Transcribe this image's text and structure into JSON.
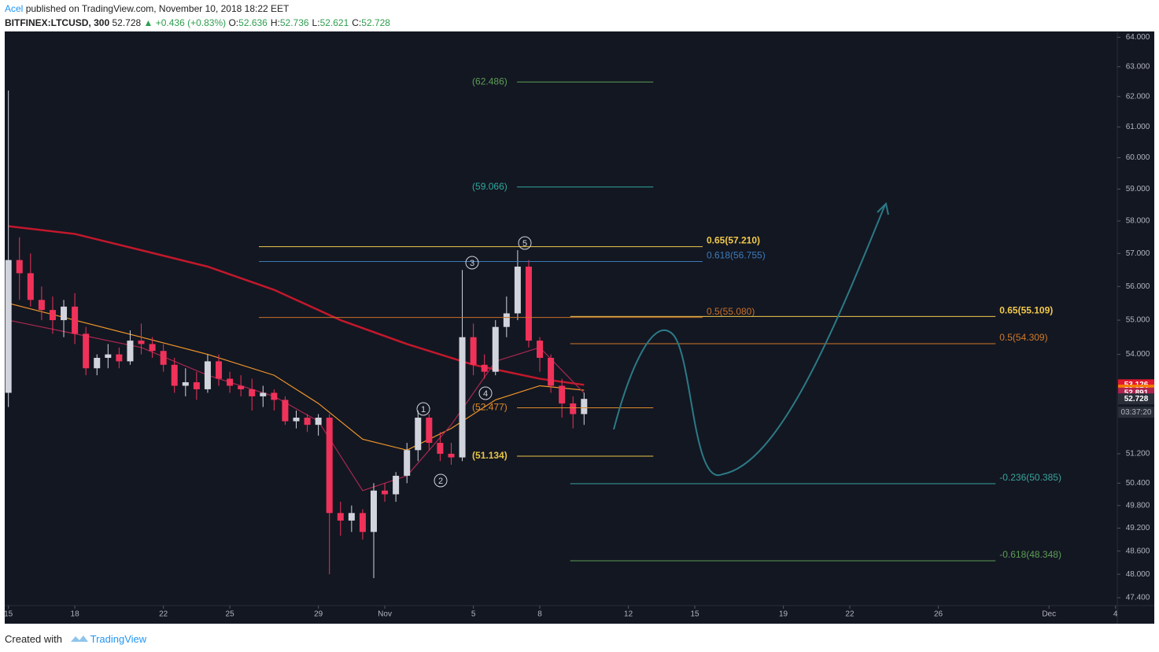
{
  "header": {
    "author": "Acel",
    "published": "published on TradingView.com, November 10, 2018 18:22 EET",
    "symbol": "BITFINEX:LTCUSD, 300",
    "last": "52.728",
    "change": "▲ +0.436 (+0.83%)",
    "ohlc": [
      {
        "label": "O:",
        "value": "52.636"
      },
      {
        "label": "H:",
        "value": "52.736"
      },
      {
        "label": "L:",
        "value": "52.621"
      },
      {
        "label": "C:",
        "value": "52.728"
      }
    ]
  },
  "footer": {
    "created": "Created with",
    "brand": "TradingView"
  },
  "chart_data": {
    "type": "candlestick",
    "log_scale": true,
    "xlim": [
      "2018-10-14T20:00",
      "2018-12-04T02:00"
    ],
    "ylim": [
      47.2,
      64.2
    ],
    "xticks": [
      {
        "value": "2018-10-15T00:00",
        "label": "15"
      },
      {
        "value": "2018-10-18T00:00",
        "label": "18"
      },
      {
        "value": "2018-10-22T00:00",
        "label": "22"
      },
      {
        "value": "2018-10-25T00:00",
        "label": "25"
      },
      {
        "value": "2018-10-29T00:00",
        "label": "29"
      },
      {
        "value": "2018-11-01T00:00",
        "label": "Nov"
      },
      {
        "value": "2018-11-05T00:00",
        "label": "5"
      },
      {
        "value": "2018-11-08T00:00",
        "label": "8"
      },
      {
        "value": "2018-11-12T00:00",
        "label": "12"
      },
      {
        "value": "2018-11-15T00:00",
        "label": "15"
      },
      {
        "value": "2018-11-19T00:00",
        "label": "19"
      },
      {
        "value": "2018-11-22T00:00",
        "label": "22"
      },
      {
        "value": "2018-11-26T00:00",
        "label": "26"
      },
      {
        "value": "2018-12-01T00:00",
        "label": "Dec"
      },
      {
        "value": "2018-12-04T00:00",
        "label": "4"
      }
    ],
    "yticks": [
      {
        "value": 64,
        "label": "64.000"
      },
      {
        "value": 63,
        "label": "63.000"
      },
      {
        "value": 62,
        "label": "62.000"
      },
      {
        "value": 61,
        "label": "61.000"
      },
      {
        "value": 60,
        "label": "60.000"
      },
      {
        "value": 59,
        "label": "59.000"
      },
      {
        "value": 58,
        "label": "58.000"
      },
      {
        "value": 57,
        "label": "57.000"
      },
      {
        "value": 56,
        "label": "56.000"
      },
      {
        "value": 55,
        "label": "55.000"
      },
      {
        "value": 54,
        "label": "54.000"
      },
      {
        "value": 51.2,
        "label": "51.200"
      },
      {
        "value": 50.4,
        "label": "50.400"
      },
      {
        "value": 49.8,
        "label": "49.800"
      },
      {
        "value": 49.2,
        "label": "49.200"
      },
      {
        "value": 48.6,
        "label": "48.600"
      },
      {
        "value": 48,
        "label": "48.000"
      },
      {
        "value": 47.4,
        "label": "47.400"
      }
    ],
    "up_color": "#d1d4dc",
    "down_color": "#f0325a",
    "x": [
      "2018-10-15T00:00",
      "2018-10-15T12:00",
      "2018-10-16T00:00",
      "2018-10-16T12:00",
      "2018-10-17T00:00",
      "2018-10-17T12:00",
      "2018-10-18T00:00",
      "2018-10-18T12:00",
      "2018-10-19T00:00",
      "2018-10-19T12:00",
      "2018-10-20T00:00",
      "2018-10-20T12:00",
      "2018-10-21T00:00",
      "2018-10-21T12:00",
      "2018-10-22T00:00",
      "2018-10-22T12:00",
      "2018-10-23T00:00",
      "2018-10-23T12:00",
      "2018-10-24T00:00",
      "2018-10-24T12:00",
      "2018-10-25T00:00",
      "2018-10-25T12:00",
      "2018-10-26T00:00",
      "2018-10-26T12:00",
      "2018-10-27T00:00",
      "2018-10-27T12:00",
      "2018-10-28T00:00",
      "2018-10-28T12:00",
      "2018-10-29T00:00",
      "2018-10-29T12:00",
      "2018-10-30T00:00",
      "2018-10-30T12:00",
      "2018-10-31T00:00",
      "2018-10-31T12:00",
      "2018-11-01T00:00",
      "2018-11-01T12:00",
      "2018-11-02T00:00",
      "2018-11-02T12:00",
      "2018-11-03T00:00",
      "2018-11-03T12:00",
      "2018-11-04T00:00",
      "2018-11-04T12:00",
      "2018-11-05T00:00",
      "2018-11-05T12:00",
      "2018-11-06T00:00",
      "2018-11-06T12:00",
      "2018-11-07T00:00",
      "2018-11-07T12:00",
      "2018-11-08T00:00",
      "2018-11-08T12:00",
      "2018-11-09T00:00",
      "2018-11-09T12:00",
      "2018-11-10T00:00"
    ],
    "open": [
      52.9,
      56.8,
      56.4,
      55.6,
      55.3,
      55.0,
      55.4,
      54.6,
      53.6,
      53.9,
      54.0,
      53.8,
      54.4,
      54.3,
      54.1,
      53.7,
      53.1,
      53.2,
      53.0,
      53.8,
      53.3,
      53.1,
      53.0,
      52.8,
      52.9,
      52.7,
      52.1,
      52.2,
      52.0,
      52.2,
      49.6,
      49.4,
      49.6,
      49.1,
      50.2,
      50.1,
      50.6,
      51.3,
      52.2,
      51.5,
      51.2,
      51.1,
      54.5,
      53.7,
      53.5,
      54.8,
      55.2,
      56.6,
      54.4,
      53.9,
      53.1,
      52.6,
      52.3
    ],
    "high": [
      62.2,
      57.5,
      57.0,
      56.0,
      55.7,
      55.6,
      55.8,
      54.8,
      54.0,
      54.3,
      54.2,
      54.7,
      54.9,
      54.5,
      54.3,
      53.9,
      53.6,
      53.5,
      54.0,
      54.0,
      53.5,
      53.4,
      53.3,
      53.1,
      53.0,
      52.8,
      52.4,
      52.3,
      52.3,
      52.3,
      49.9,
      49.8,
      49.7,
      50.4,
      50.4,
      50.7,
      51.5,
      52.4,
      52.3,
      51.8,
      51.5,
      56.5,
      54.9,
      54.0,
      55.0,
      55.7,
      57.1,
      56.8,
      54.5,
      54.0,
      53.3,
      52.8,
      52.9
    ],
    "low": [
      52.5,
      55.6,
      55.4,
      55.0,
      54.6,
      54.5,
      54.3,
      53.4,
      53.4,
      53.6,
      53.6,
      53.7,
      54.0,
      53.9,
      53.5,
      52.9,
      52.8,
      52.7,
      52.9,
      53.1,
      52.9,
      52.8,
      52.4,
      52.5,
      52.4,
      52.0,
      51.9,
      51.8,
      51.7,
      48.0,
      49.0,
      49.1,
      48.9,
      47.9,
      49.9,
      49.9,
      50.4,
      51.0,
      51.3,
      51.0,
      50.9,
      51.0,
      53.4,
      53.3,
      53.4,
      54.5,
      55.0,
      54.2,
      53.5,
      52.9,
      52.2,
      51.9,
      52.0
    ],
    "close": [
      56.8,
      56.4,
      55.6,
      55.3,
      55.0,
      55.4,
      54.6,
      53.6,
      53.9,
      54.0,
      53.8,
      54.4,
      54.3,
      54.1,
      53.7,
      53.1,
      53.2,
      53.0,
      53.8,
      53.3,
      53.1,
      53.0,
      52.8,
      52.9,
      52.7,
      52.1,
      52.2,
      52.0,
      52.2,
      49.6,
      49.4,
      49.6,
      49.1,
      50.2,
      50.1,
      50.6,
      51.3,
      52.2,
      51.5,
      51.2,
      51.1,
      54.5,
      53.7,
      53.5,
      54.8,
      55.2,
      56.6,
      54.4,
      53.9,
      53.1,
      52.6,
      52.3,
      52.728
    ],
    "overlays": [
      {
        "color": "#c2182b",
        "x": [
          "2018-10-15T00:00",
          "2018-10-18T00:00",
          "2018-10-21T00:00",
          "2018-10-24T00:00",
          "2018-10-27T00:00",
          "2018-10-30T00:00",
          "2018-11-02T00:00",
          "2018-11-05T00:00",
          "2018-11-08T00:00",
          "2018-11-10T00:00"
        ],
        "values": [
          57.84,
          57.6,
          57.1,
          56.6,
          55.9,
          55.0,
          54.3,
          53.7,
          53.3,
          53.126
        ]
      },
      {
        "color": "#f0962a",
        "x": [
          "2018-10-15T00:00",
          "2018-10-18T00:00",
          "2018-10-21T00:00",
          "2018-10-24T00:00",
          "2018-10-27T00:00",
          "2018-10-29T00:00",
          "2018-10-31T00:00",
          "2018-11-02T00:00",
          "2018-11-04T00:00",
          "2018-11-06T00:00",
          "2018-11-08T00:00",
          "2018-11-10T00:00"
        ],
        "values": [
          55.5,
          55.0,
          54.5,
          54.0,
          53.4,
          52.6,
          51.6,
          51.3,
          51.9,
          52.7,
          53.1,
          52.974
        ]
      },
      {
        "color": "#a8284f",
        "x": [
          "2018-10-15T00:00",
          "2018-10-18T00:00",
          "2018-10-21T00:00",
          "2018-10-24T00:00",
          "2018-10-27T00:00",
          "2018-10-29T00:00",
          "2018-10-31T00:00",
          "2018-11-02T00:00",
          "2018-11-04T00:00",
          "2018-11-06T00:00",
          "2018-11-08T00:00",
          "2018-11-10T00:00"
        ],
        "values": [
          55.0,
          54.6,
          54.2,
          53.4,
          52.8,
          52.1,
          50.2,
          50.6,
          52.0,
          53.8,
          54.2,
          52.891
        ]
      }
    ],
    "fib_groups": [
      {
        "start": "2018-10-26T07:30",
        "end": "2018-11-15T08:30",
        "label_pos": "right",
        "levels": [
          {
            "text": "0.65(57.210)",
            "price": 57.21,
            "color": "#f2c94c",
            "bold": true
          },
          {
            "text": "0.618(56.755)",
            "price": 56.755,
            "color": "#3d7ab8"
          },
          {
            "text": "0.5(55.080)",
            "price": 55.08,
            "color": "#c8702a"
          }
        ]
      },
      {
        "start": "2018-11-04T22:40",
        "end": "2018-11-13T03:00",
        "label_pos": "left",
        "levels": [
          {
            "text": "(62.486)",
            "price": 62.486,
            "color": "#5d9e55"
          },
          {
            "text": "(59.066)",
            "price": 59.066,
            "color": "#2fa99c"
          },
          {
            "text": "(52.477)",
            "price": 52.477,
            "color": "#e08a2a"
          },
          {
            "text": "(51.134)",
            "price": 51.134,
            "color": "#e8c547",
            "bold": true
          }
        ]
      },
      {
        "start": "2018-11-09T09:00",
        "end": "2018-11-28T14:00",
        "label_pos": "right",
        "levels": [
          {
            "text": "0.65(55.109)",
            "price": 55.109,
            "color": "#f2c94c",
            "bold": true
          },
          {
            "text": "0.5(54.309)",
            "price": 54.309,
            "color": "#d17a2a"
          },
          {
            "text": "-0.236(50.385)",
            "price": 50.385,
            "color": "#3aa39a"
          },
          {
            "text": "-0.618(48.348)",
            "price": 48.348,
            "color": "#5d9e55"
          }
        ]
      }
    ],
    "waves": [
      "1",
      "2",
      "3",
      "4",
      "5"
    ],
    "price_tags": [
      {
        "value": 53.126,
        "label": "53.126",
        "color": "#e0182d"
      },
      {
        "value": 52.974,
        "label": "52.974",
        "color": "#f57c00"
      },
      {
        "value": 52.891,
        "label": "52.891",
        "color": "#b0234f"
      },
      {
        "value": 52.728,
        "label": "52.728",
        "color": "#2a2e39"
      }
    ],
    "countdown": "03:37:20"
  }
}
